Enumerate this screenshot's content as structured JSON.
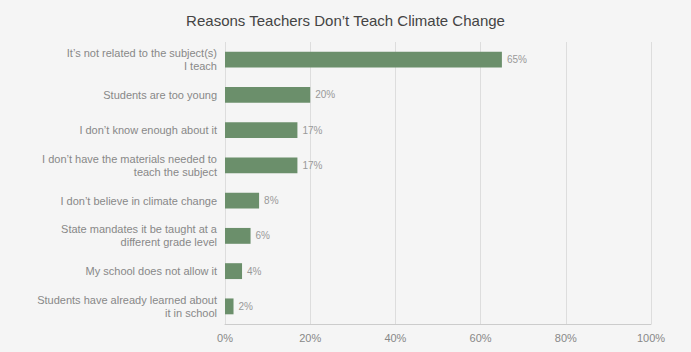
{
  "chart_data": {
    "type": "bar",
    "orientation": "horizontal",
    "title": "Reasons Teachers Don’t Teach Climate Change",
    "categories": [
      "Students have already learned about\nit in school",
      "My school does not allow it",
      "State mandates it be taught at a\ndifferent grade level",
      "I don’t believe in climate change",
      "I don’t have the materials needed to\nteach the subject",
      "I don’t know enough about it",
      "Students are too young",
      "It’s not related to the subject(s)\nI teach"
    ],
    "values": [
      2,
      4,
      6,
      8,
      17,
      17,
      20,
      65
    ],
    "value_labels": [
      "2%",
      "4%",
      "6%",
      "8%",
      "17%",
      "17%",
      "20%",
      "65%"
    ],
    "data_labels": true,
    "color": "#6b8f6b",
    "xlim": [
      0,
      100
    ],
    "xticks": [
      {
        "value": 0,
        "label": "0%"
      },
      {
        "value": 20,
        "label": "20%"
      },
      {
        "value": 40,
        "label": "40%"
      },
      {
        "value": 60,
        "label": "60%"
      },
      {
        "value": 80,
        "label": "80%"
      },
      {
        "value": 100,
        "label": "100%"
      }
    ],
    "grid": true
  }
}
